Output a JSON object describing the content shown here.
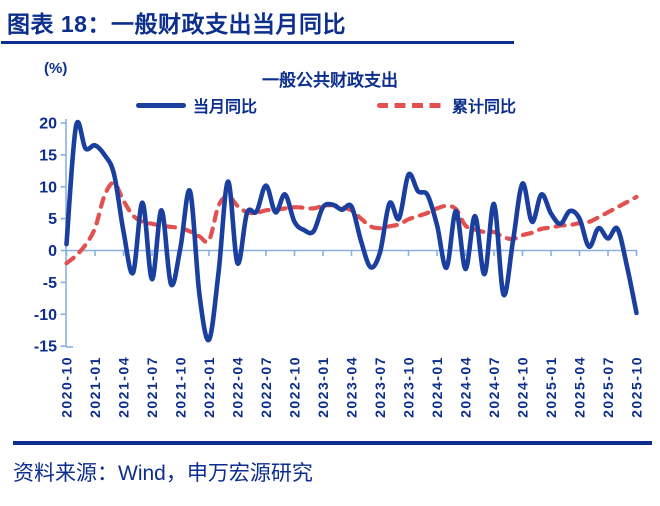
{
  "header": {
    "title": "图表 18：一般财政支出当月同比"
  },
  "footer": {
    "source": "资料来源：Wind，申万宏源研究"
  },
  "chart": {
    "unit_label": "(%)",
    "title": "一般公共财政支出",
    "legend": [
      {
        "label": "当月同比",
        "style": "solid"
      },
      {
        "label": "累计同比",
        "style": "dashed"
      }
    ]
  },
  "colors": {
    "navy": "#0c2e8d",
    "blue_line": "#1a3f9e",
    "red_line": "#e25050",
    "axis_blue": "#8ab0dd",
    "background": "#ffffff"
  },
  "chart_data": {
    "type": "line",
    "title": "一般公共财政支出",
    "ylabel": "(%)",
    "ylim": [
      -15,
      20
    ],
    "y_ticks": [
      20,
      15,
      10,
      5,
      0,
      -5,
      -10,
      -15
    ],
    "x_range": {
      "start": "2020-10",
      "end": "2025-10",
      "interval": "monthly"
    },
    "x_tick_labels": [
      "2020-10",
      "2021-01",
      "2021-04",
      "2021-07",
      "2021-10",
      "2022-01",
      "2022-04",
      "2022-07",
      "2022-10",
      "2023-01",
      "2023-04",
      "2023-07",
      "2023-10",
      "2024-01",
      "2024-04",
      "2024-07",
      "2024-10",
      "2025-01",
      "2025-04",
      "2025-07",
      "2025-10"
    ],
    "grid": false,
    "legend_position": "top",
    "series": [
      {
        "name": "当月同比",
        "style": "solid",
        "color": "#1a3f9e",
        "values": [
          1.0,
          19.5,
          16.0,
          16.5,
          15.0,
          12.0,
          3.0,
          -3.5,
          7.5,
          -4.5,
          6.3,
          -5.3,
          0.5,
          9.3,
          -7.0,
          -14.0,
          -3.5,
          10.8,
          -2.0,
          5.9,
          6.1,
          10.2,
          6.0,
          8.8,
          4.5,
          3.2,
          3.0,
          6.8,
          7.2,
          6.4,
          6.9,
          1.5,
          -2.6,
          -0.3,
          7.4,
          5.0,
          11.9,
          9.3,
          8.7,
          4.0,
          -2.7,
          6.2,
          -2.9,
          5.4,
          -3.7,
          7.3,
          -6.9,
          1.5,
          10.5,
          4.5,
          8.8,
          5.8,
          4.2,
          6.2,
          5.0,
          0.6,
          3.5,
          1.9,
          3.4,
          -2.5,
          -9.8
        ]
      },
      {
        "name": "累计同比",
        "style": "dashed",
        "color": "#e25050",
        "values": [
          -2.0,
          -0.8,
          0.9,
          3.5,
          8.6,
          10.6,
          7.8,
          5.5,
          4.5,
          4.2,
          3.9,
          3.7,
          3.5,
          3.0,
          2.2,
          1.6,
          7.0,
          8.5,
          7.0,
          6.0,
          5.9,
          6.3,
          6.4,
          6.6,
          6.8,
          6.7,
          6.6,
          7.0,
          7.1,
          6.8,
          6.3,
          5.0,
          3.8,
          3.5,
          3.8,
          4.1,
          4.9,
          5.4,
          5.9,
          6.6,
          7.0,
          6.5,
          3.9,
          3.3,
          2.9,
          2.9,
          2.1,
          1.8,
          2.4,
          2.8,
          3.4,
          3.6,
          3.9,
          4.0,
          4.3,
          4.5,
          5.2,
          6.0,
          6.8,
          7.6,
          8.4
        ]
      }
    ]
  }
}
